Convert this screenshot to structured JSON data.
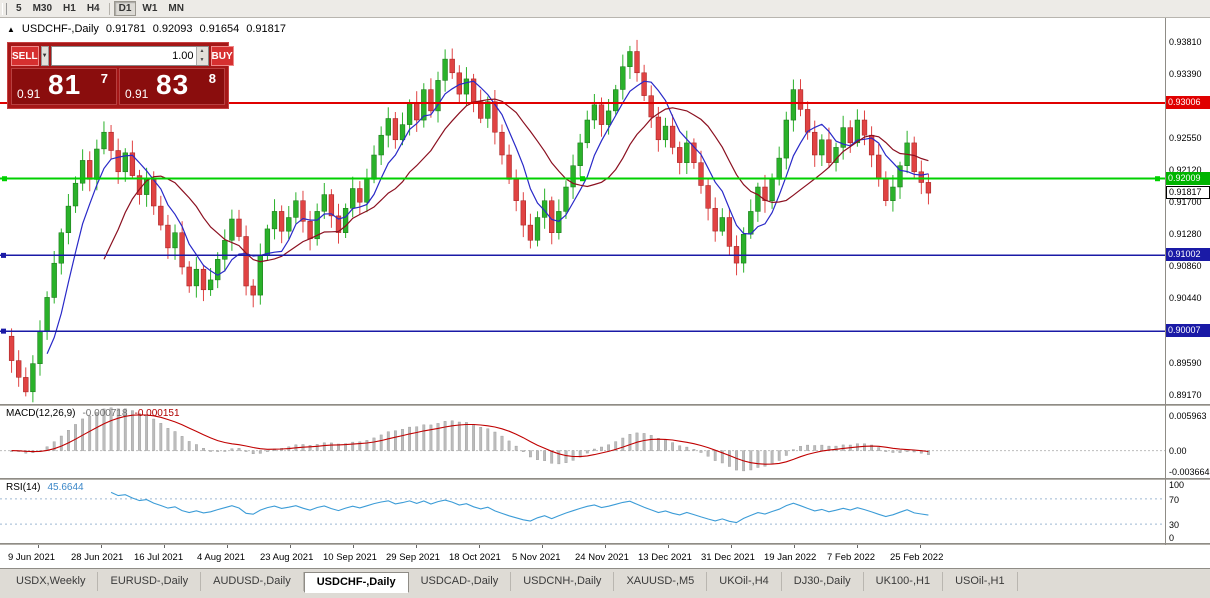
{
  "toolbar": {
    "timeframes": [
      {
        "label": "5"
      },
      {
        "label": "M30"
      },
      {
        "label": "H1"
      },
      {
        "label": "H4"
      },
      {
        "label": "D1",
        "active": true
      },
      {
        "label": "W1"
      },
      {
        "label": "MN"
      }
    ]
  },
  "chart": {
    "collapse_arrow": "▲",
    "symbol_title": "USDCHF-,Daily",
    "ohlc": {
      "open": "0.91781",
      "high": "0.92093",
      "low": "0.91654",
      "close": "0.91817"
    },
    "trade_panel": {
      "sell_label": "SELL",
      "buy_label": "BUY",
      "volume": "1.00",
      "dropdown_icon": "▼",
      "spin_up": "▲",
      "spin_down": "▼",
      "sell_price": {
        "small": "0.91",
        "big": "81",
        "sup": "7"
      },
      "buy_price": {
        "small": "0.91",
        "big": "83",
        "sup": "8"
      }
    },
    "axis_labels": [
      "0.93810",
      "0.93390",
      "0.92970",
      "0.92550",
      "0.92120",
      "0.91700",
      "0.91280",
      "0.90860",
      "0.90440",
      "0.90020",
      "0.89590",
      "0.89170"
    ],
    "lines": [
      {
        "label": "0.93006",
        "price": 0.93006,
        "color": "#e00000",
        "badge": "#e00000",
        "width": 2
      },
      {
        "label": "0.92009",
        "price": 0.92009,
        "color": "#00d000",
        "badge": "#00b400",
        "width": 2,
        "handles": true
      },
      {
        "label": "0.91002",
        "price": 0.91002,
        "color": "#1a1aa6",
        "badge": "#1a1aa6",
        "width": 1.5,
        "left_marker": true
      },
      {
        "label": "0.90007",
        "price": 0.90007,
        "color": "#1a1aa6",
        "badge": "#1a1aa6",
        "width": 1.5,
        "left_marker": true
      }
    ],
    "current_price": {
      "label": "0.91817",
      "price": 0.91817
    },
    "colors": {
      "bull": "#2ab12a",
      "bull_stroke": "#157015",
      "bear": "#e04343",
      "bear_stroke": "#9e1c1c",
      "ma_fast": "#2929c8",
      "ma_slow": "#8b1020",
      "macd_hist": "#bcbcbc",
      "macd_signal": "#c00000",
      "rsi": "#3c9cd7",
      "rsi_level": "#9db8d2"
    }
  },
  "chart_data": {
    "type": "candlestick",
    "symbol": "USDCHF-",
    "timeframe": "Daily",
    "price_range": [
      0.8905,
      0.9412
    ],
    "closes": [
      0.8962,
      0.894,
      0.8921,
      0.8958,
      0.9,
      0.9045,
      0.909,
      0.913,
      0.9165,
      0.9195,
      0.9225,
      0.92,
      0.924,
      0.9262,
      0.9238,
      0.921,
      0.9235,
      0.9205,
      0.918,
      0.92,
      0.9165,
      0.914,
      0.911,
      0.913,
      0.9085,
      0.906,
      0.9082,
      0.9055,
      0.9068,
      0.9095,
      0.912,
      0.9148,
      0.9125,
      0.906,
      0.9048,
      0.91,
      0.9135,
      0.9158,
      0.9132,
      0.915,
      0.9172,
      0.9145,
      0.9122,
      0.9158,
      0.918,
      0.9152,
      0.913,
      0.9162,
      0.9188,
      0.917,
      0.92,
      0.9232,
      0.9258,
      0.928,
      0.9252,
      0.9272,
      0.93,
      0.9278,
      0.9318,
      0.929,
      0.933,
      0.9358,
      0.934,
      0.9312,
      0.9332,
      0.9302,
      0.928,
      0.9302,
      0.9262,
      0.9232,
      0.92,
      0.9172,
      0.914,
      0.912,
      0.915,
      0.9172,
      0.913,
      0.9158,
      0.919,
      0.9218,
      0.9248,
      0.9278,
      0.9298,
      0.9272,
      0.929,
      0.9318,
      0.9348,
      0.9368,
      0.934,
      0.931,
      0.9282,
      0.9252,
      0.927,
      0.9242,
      0.9222,
      0.9248,
      0.9222,
      0.9192,
      0.9162,
      0.9132,
      0.915,
      0.9112,
      0.909,
      0.9128,
      0.9158,
      0.919,
      0.9172,
      0.92,
      0.9228,
      0.9278,
      0.9318,
      0.9292,
      0.9262,
      0.9232,
      0.9252,
      0.9222,
      0.9242,
      0.9268,
      0.9248,
      0.9278,
      0.9258,
      0.9232,
      0.9202,
      0.9172,
      0.919,
      0.9218,
      0.9248,
      0.921,
      0.9196,
      0.9182
    ],
    "dates": [
      "9 Jun 2021",
      "28 Jun 2021",
      "16 Jul 2021",
      "4 Aug 2021",
      "23 Aug 2021",
      "10 Sep 2021",
      "29 Sep 2021",
      "18 Oct 2021",
      "5 Nov 2021",
      "24 Nov 2021",
      "13 Dec 2021",
      "31 Dec 2021",
      "19 Jan 2022",
      "7 Feb 2022",
      "25 Feb 2022"
    ],
    "indicators": {
      "ma_fast": 6,
      "ma_slow": 14,
      "macd": [
        12,
        26,
        9
      ],
      "rsi": 14
    }
  },
  "macd": {
    "header": "MACD(12,26,9)",
    "value1": "-0.000718",
    "value2": "-0.000151",
    "axis": [
      "0.005963",
      "0.00",
      "-0.003664"
    ],
    "range": [
      -0.0048,
      0.0078
    ]
  },
  "rsi": {
    "header": "RSI(14)",
    "value": "45.6644",
    "axis": [
      "100",
      "70",
      "30",
      "0"
    ],
    "levels": [
      70,
      30
    ]
  },
  "tabs": [
    {
      "label": "USDX,Weekly"
    },
    {
      "label": "EURUSD-,Daily"
    },
    {
      "label": "AUDUSD-,Daily"
    },
    {
      "label": "USDCHF-,Daily",
      "active": true
    },
    {
      "label": "USDCAD-,Daily"
    },
    {
      "label": "USDCNH-,Daily"
    },
    {
      "label": "XAUUSD-,M5"
    },
    {
      "label": "UKOil-,H4"
    },
    {
      "label": "DJ30-,Daily"
    },
    {
      "label": "UK100-,H1"
    },
    {
      "label": "USOil-,H1"
    }
  ]
}
